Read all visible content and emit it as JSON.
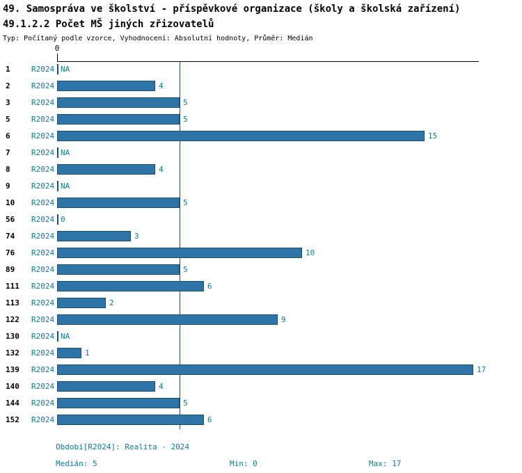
{
  "header": {
    "title_line1": "49. Samospráva ve školství - příspěvkové organizace (školy a školská zařízení)",
    "title_line2": "49.1.2.2 Počet MŠ jiných zřizovatelů",
    "subtitle": "Typ: Počítaný podle vzorce, Vyhodnocení: Absolutní hodnoty, Průměr: Medián"
  },
  "axis": {
    "zero_label": "0"
  },
  "footer": {
    "period": "Období[R2024]: Realita - 2024",
    "median": "Medián: 5",
    "min": "Min: 0",
    "max": "Max: 17"
  },
  "colors": {
    "bar": "#2e74a8",
    "bar_border": "#1c4e6b",
    "label": "#0e7a96",
    "axis": "#000000",
    "median_line": "#1f4e79"
  },
  "chart_data": {
    "type": "bar",
    "orientation": "horizontal",
    "title": "49.1.2.2 Počet MŠ jiných zřizovatelů",
    "categories": [
      "1",
      "2",
      "3",
      "5",
      "6",
      "7",
      "8",
      "9",
      "10",
      "56",
      "74",
      "76",
      "89",
      "111",
      "113",
      "122",
      "130",
      "132",
      "139",
      "140",
      "144",
      "152"
    ],
    "series": [
      {
        "name": "R2024",
        "values": [
          null,
          4,
          5,
          5,
          15,
          null,
          4,
          null,
          5,
          0,
          3,
          10,
          5,
          6,
          2,
          9,
          null,
          1,
          17,
          4,
          5,
          6
        ]
      }
    ],
    "value_labels": [
      "NA",
      "4",
      "5",
      "5",
      "15",
      "NA",
      "4",
      "NA",
      "5",
      "0",
      "3",
      "10",
      "5",
      "6",
      "2",
      "9",
      "NA",
      "1",
      "17",
      "4",
      "5",
      "6"
    ],
    "xlim": [
      0,
      17.2
    ],
    "median": 5,
    "min": 0,
    "max": 17,
    "grid": false,
    "legend_position": "bottom"
  }
}
